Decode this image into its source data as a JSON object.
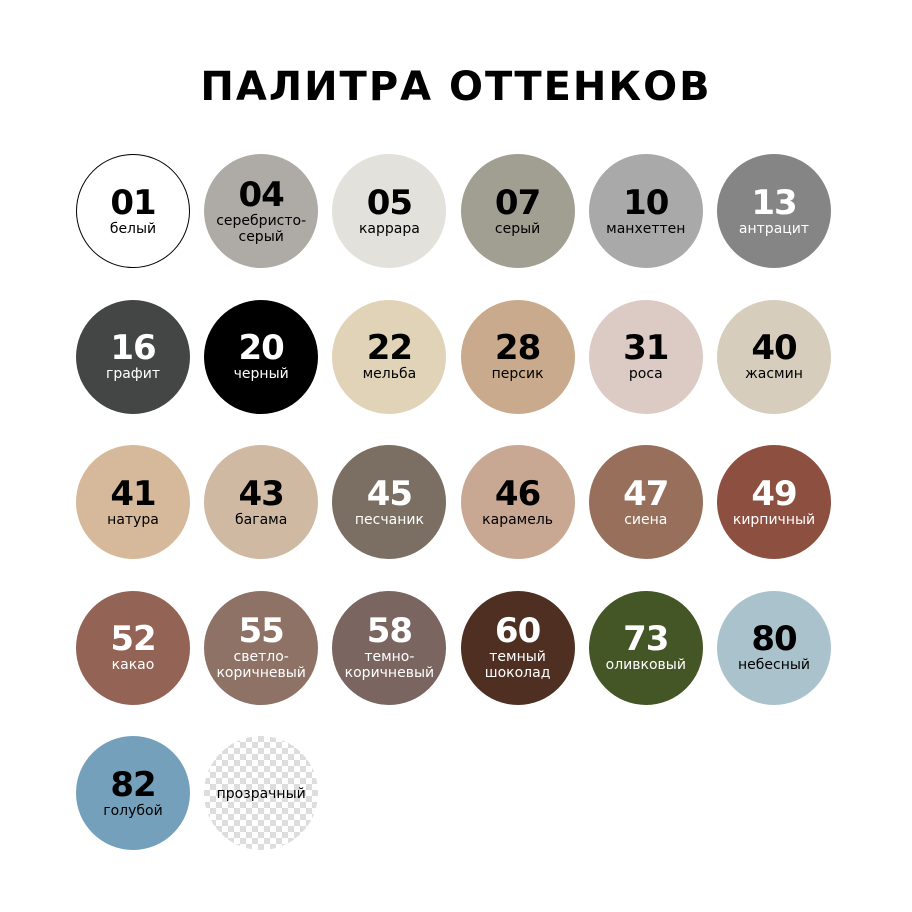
{
  "title": "ПАЛИТРА ОТТЕНКОВ",
  "swatches": [
    {
      "code": "01",
      "name": "белый",
      "color": "#ffffff",
      "text": "#000000",
      "border": "#000000"
    },
    {
      "code": "04",
      "name": "серебристо-\nсерый",
      "color": "#aeaba6",
      "text": "#000000"
    },
    {
      "code": "05",
      "name": "каррара",
      "color": "#e2e1dc",
      "text": "#000000"
    },
    {
      "code": "07",
      "name": "серый",
      "color": "#a19f92",
      "text": "#000000"
    },
    {
      "code": "10",
      "name": "манхеттен",
      "color": "#a9a9a9",
      "text": "#000000"
    },
    {
      "code": "13",
      "name": "антрацит",
      "color": "#858585",
      "text": "#ffffff"
    },
    {
      "code": "16",
      "name": "графит",
      "color": "#444645",
      "text": "#ffffff"
    },
    {
      "code": "20",
      "name": "черный",
      "color": "#000000",
      "text": "#ffffff"
    },
    {
      "code": "22",
      "name": "мельба",
      "color": "#e0d3b7",
      "text": "#000000"
    },
    {
      "code": "28",
      "name": "персик",
      "color": "#c9aa8c",
      "text": "#000000"
    },
    {
      "code": "31",
      "name": "роса",
      "color": "#dccbc5",
      "text": "#000000"
    },
    {
      "code": "40",
      "name": "жасмин",
      "color": "#d6cdbc",
      "text": "#000000"
    },
    {
      "code": "41",
      "name": "натура",
      "color": "#d6b99a",
      "text": "#000000"
    },
    {
      "code": "43",
      "name": "багама",
      "color": "#cfb9a3",
      "text": "#000000"
    },
    {
      "code": "45",
      "name": "песчаник",
      "color": "#7a6f62",
      "text": "#ffffff"
    },
    {
      "code": "46",
      "name": "карамель",
      "color": "#c8a892",
      "text": "#000000"
    },
    {
      "code": "47",
      "name": "сиена",
      "color": "#976f5a",
      "text": "#ffffff"
    },
    {
      "code": "49",
      "name": "кирпичный",
      "color": "#8d5040",
      "text": "#ffffff"
    },
    {
      "code": "52",
      "name": "какао",
      "color": "#936356",
      "text": "#ffffff"
    },
    {
      "code": "55",
      "name": "светло-\nкоричневый",
      "color": "#8e7266",
      "text": "#ffffff"
    },
    {
      "code": "58",
      "name": "темно-\nкоричневый",
      "color": "#7a6560",
      "text": "#ffffff"
    },
    {
      "code": "60",
      "name": "темный\nшоколад",
      "color": "#4e2f22",
      "text": "#ffffff"
    },
    {
      "code": "73",
      "name": "оливковый",
      "color": "#445526",
      "text": "#ffffff"
    },
    {
      "code": "80",
      "name": "небесный",
      "color": "#a9c2cc",
      "text": "#000000"
    },
    {
      "code": "82",
      "name": "голубой",
      "color": "#75a0bb",
      "text": "#000000"
    },
    {
      "code": "",
      "name": "прозрачный",
      "color": "transparent",
      "text": "#000000",
      "pattern": "checker"
    }
  ]
}
